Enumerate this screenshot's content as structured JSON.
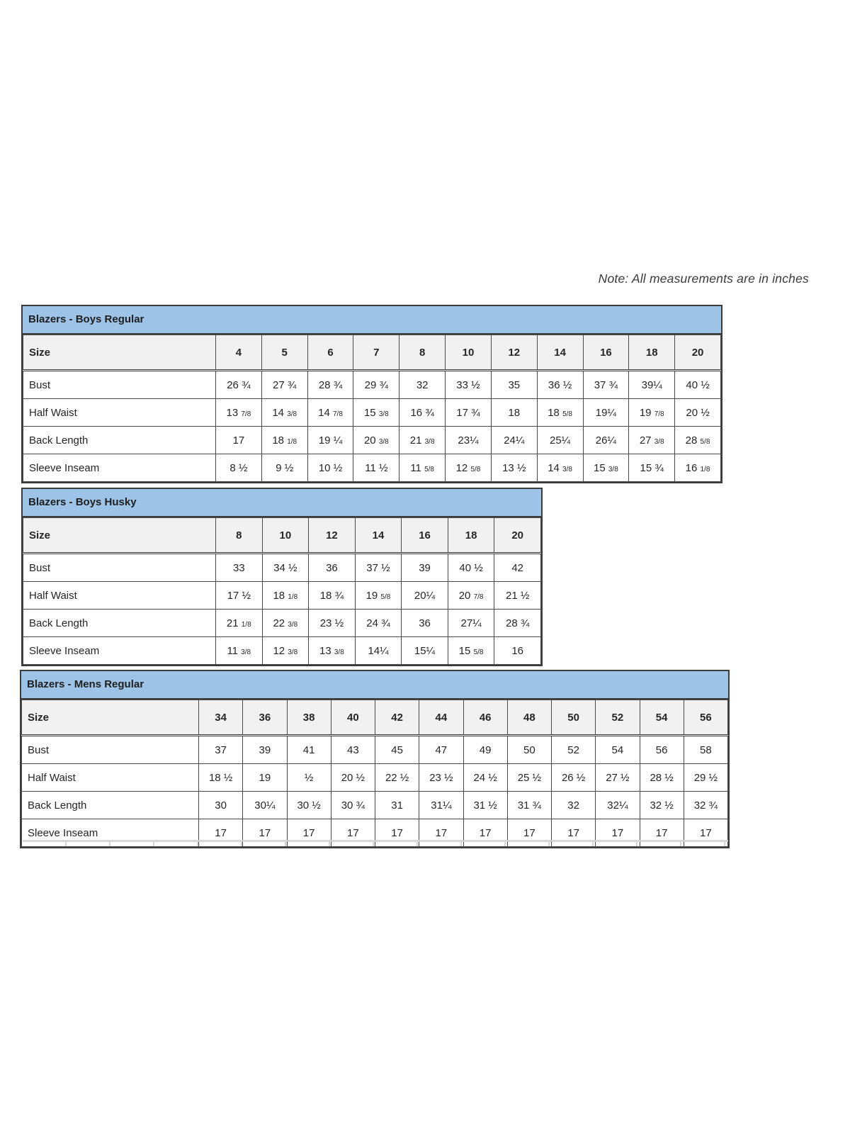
{
  "note": "Note: All measurements are in inches",
  "tables": [
    {
      "title": "Blazers - Boys Regular",
      "size_label": "Size",
      "sizes": [
        "4",
        "5",
        "6",
        "7",
        "8",
        "10",
        "12",
        "14",
        "16",
        "18",
        "20"
      ],
      "rows": [
        {
          "label": "Bust",
          "values": [
            "26 ¾",
            "27 ¾",
            "28 ¾",
            "29 ¾",
            "32",
            "33 ½",
            "35",
            "36 ½",
            "37 ¾",
            "39¼",
            "40 ½"
          ]
        },
        {
          "label": "Half Waist",
          "values": [
            "13 7/8",
            "14 3/8",
            "14 7/8",
            "15 3/8",
            "16 ¾",
            "17 ¾",
            "18",
            "18 5/8",
            "19¼",
            "19 7/8",
            "20 ½"
          ]
        },
        {
          "label": "Back Length",
          "values": [
            "17",
            "18 1/8",
            "19 ¼",
            "20 3/8",
            "21 3/8",
            "23¼",
            "24¼",
            "25¼",
            "26¼",
            "27 3/8",
            "28 5/8"
          ]
        },
        {
          "label": "Sleeve Inseam",
          "values": [
            "8 ½",
            "9 ½",
            "10 ½",
            "11 ½",
            "11 5/8",
            "12 5/8",
            "13 ½",
            "14 3/8",
            "15 3/8",
            "15 ¾",
            "16 1/8"
          ]
        }
      ]
    },
    {
      "title": "Blazers - Boys Husky",
      "size_label": "Size",
      "sizes": [
        "8",
        "10",
        "12",
        "14",
        "16",
        "18",
        "20"
      ],
      "rows": [
        {
          "label": "Bust",
          "values": [
            "33",
            "34 ½",
            "36",
            "37 ½",
            "39",
            "40 ½",
            "42"
          ]
        },
        {
          "label": "Half Waist",
          "values": [
            "17 ½",
            "18 1/8",
            "18 ¾",
            "19 5/8",
            "20¼",
            "20 7/8",
            "21 ½"
          ]
        },
        {
          "label": "Back Length",
          "values": [
            "21 1/8",
            "22 3/8",
            "23 ½",
            "24 ¾",
            "36",
            "27¼",
            "28 ¾"
          ]
        },
        {
          "label": "Sleeve Inseam",
          "values": [
            "11 3/8",
            "12 3/8",
            "13 3/8",
            "14¼",
            "15¼",
            "15 5/8",
            "16"
          ]
        }
      ]
    },
    {
      "title": "Blazers - Mens Regular",
      "size_label": "Size",
      "sizes": [
        "34",
        "36",
        "38",
        "40",
        "42",
        "44",
        "46",
        "48",
        "50",
        "52",
        "54",
        "56"
      ],
      "rows": [
        {
          "label": "Bust",
          "values": [
            "37",
            "39",
            "41",
            "43",
            "45",
            "47",
            "49",
            "50",
            "52",
            "54",
            "56",
            "58"
          ]
        },
        {
          "label": "Half Waist",
          "values": [
            "18 ½",
            "19",
            "½",
            "20 ½",
            "22 ½",
            "23 ½",
            "24 ½",
            "25 ½",
            "26 ½",
            "27 ½",
            "28 ½",
            "29 ½"
          ]
        },
        {
          "label": "Back Length",
          "values": [
            "30",
            "30¼",
            "30 ½",
            "30 ¾",
            "31",
            "31¼",
            "31 ½",
            "31 ¾",
            "32",
            "32¼",
            "32 ½",
            "32 ¾"
          ]
        },
        {
          "label": "Sleeve Inseam",
          "values": [
            "17",
            "17",
            "17",
            "17",
            "17",
            "17",
            "17",
            "17",
            "17",
            "17",
            "17",
            "17"
          ]
        }
      ]
    }
  ]
}
